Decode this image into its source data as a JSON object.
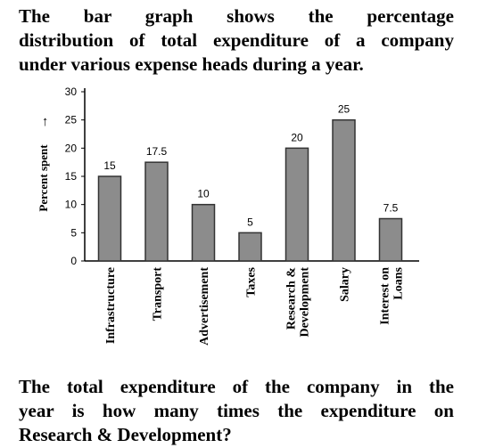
{
  "question": {
    "intro_lines": [
      "The bar graph shows the percentage",
      "distribution of total expenditure of a company",
      "under various expense heads during a year."
    ],
    "prompt_lines": [
      "The total expenditure of the company in the",
      "year is how many times the expenditure on",
      "Research & Development?"
    ]
  },
  "chart_data": {
    "type": "bar",
    "categories": [
      [
        "Infrastructure"
      ],
      [
        "Transport"
      ],
      [
        "Advertisement"
      ],
      [
        "Taxes"
      ],
      [
        "Research &",
        "Development"
      ],
      [
        "Salary"
      ],
      [
        "Interest on",
        "Loans"
      ]
    ],
    "values": [
      15,
      17.5,
      10,
      5,
      20,
      25,
      7.5
    ],
    "data_labels": [
      "15",
      "17.5",
      "10",
      "5",
      "20",
      "25",
      "7.5"
    ],
    "ylabel": "Percent spent",
    "y_arrow": "→",
    "ylim": [
      0,
      30
    ],
    "yticks": [
      0,
      5,
      10,
      15,
      20,
      25,
      30
    ],
    "grid": false,
    "colors": {
      "bar_fill": "#8c8c8c",
      "bar_stroke": "#333333",
      "axis": "#000000"
    }
  }
}
